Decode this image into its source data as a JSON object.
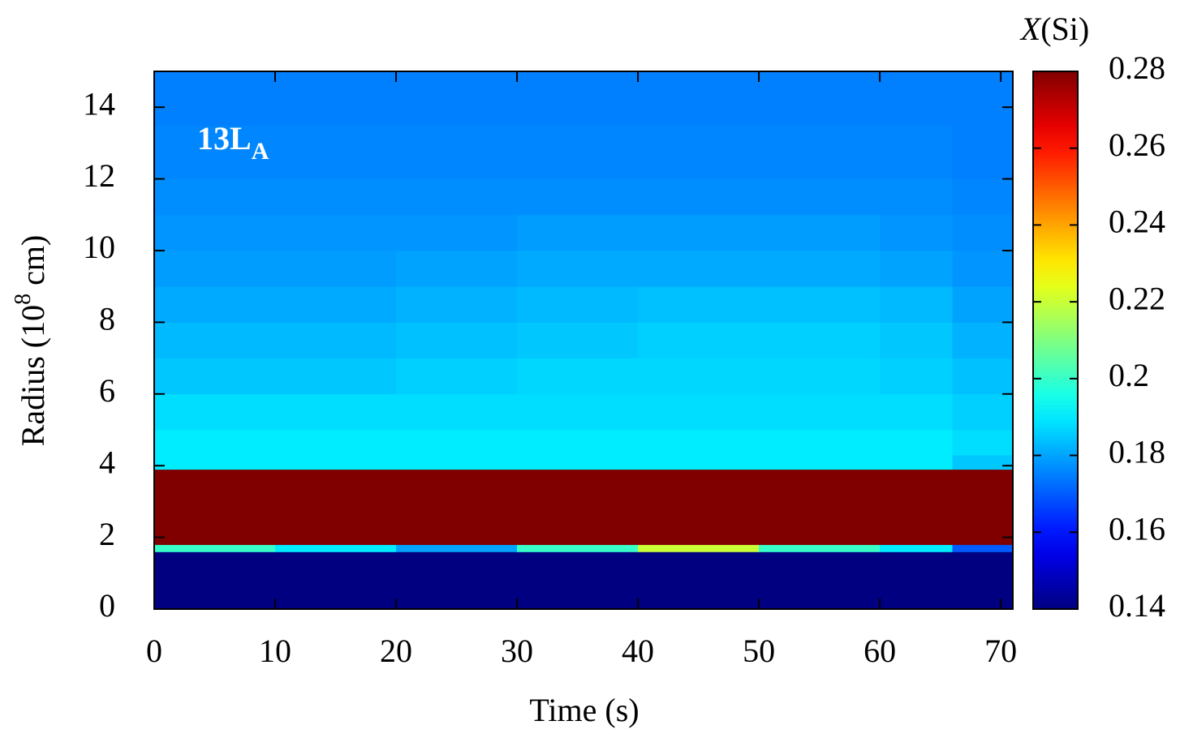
{
  "chart_data": {
    "type": "heatmap",
    "xlabel": "Time (s)",
    "ylabel": {
      "main": "Radius (10",
      "superscript": "8",
      "rest": " cm)"
    },
    "colorbar_label": {
      "italic": "X",
      "rest": "(Si)"
    },
    "annotation": {
      "main": "13L",
      "subscript": "A"
    },
    "xlim": [
      0,
      71
    ],
    "ylim": [
      0,
      15
    ],
    "xticks": [
      0,
      10,
      20,
      30,
      40,
      50,
      60,
      70
    ],
    "yticks": [
      0,
      2,
      4,
      6,
      8,
      10,
      12,
      14
    ],
    "zlim": [
      0.14,
      0.28
    ],
    "zticks": [
      0.14,
      0.16,
      0.18,
      0.2,
      0.22,
      0.24,
      0.26,
      0.28
    ],
    "colormap": "jet",
    "x_edges": [
      0,
      10,
      20,
      30,
      40,
      50,
      60,
      66,
      71
    ],
    "y_edges": [
      0,
      1.6,
      1.8,
      3.9,
      4.3,
      5,
      6,
      7,
      8,
      9,
      10,
      11,
      12,
      13.5,
      15
    ],
    "values": [
      [
        0.14,
        0.14,
        0.14,
        0.14,
        0.14,
        0.14,
        0.14,
        0.14
      ],
      [
        0.2,
        0.19,
        0.18,
        0.2,
        0.22,
        0.2,
        0.19,
        0.17
      ],
      [
        0.28,
        0.28,
        0.28,
        0.28,
        0.28,
        0.28,
        0.28,
        0.28
      ],
      [
        0.19,
        0.19,
        0.19,
        0.19,
        0.19,
        0.19,
        0.19,
        0.185
      ],
      [
        0.19,
        0.19,
        0.19,
        0.19,
        0.19,
        0.19,
        0.19,
        0.188
      ],
      [
        0.188,
        0.188,
        0.188,
        0.188,
        0.188,
        0.188,
        0.188,
        0.186
      ],
      [
        0.185,
        0.185,
        0.186,
        0.187,
        0.187,
        0.187,
        0.186,
        0.184
      ],
      [
        0.183,
        0.183,
        0.184,
        0.185,
        0.186,
        0.186,
        0.185,
        0.182
      ],
      [
        0.181,
        0.181,
        0.182,
        0.183,
        0.184,
        0.184,
        0.183,
        0.18
      ],
      [
        0.179,
        0.179,
        0.18,
        0.181,
        0.181,
        0.181,
        0.18,
        0.178
      ],
      [
        0.178,
        0.178,
        0.178,
        0.179,
        0.179,
        0.179,
        0.178,
        0.177
      ],
      [
        0.177,
        0.177,
        0.177,
        0.177,
        0.177,
        0.177,
        0.177,
        0.176
      ],
      [
        0.176,
        0.176,
        0.176,
        0.176,
        0.176,
        0.176,
        0.176,
        0.175
      ],
      [
        0.175,
        0.175,
        0.175,
        0.175,
        0.175,
        0.175,
        0.175,
        0.175
      ]
    ]
  }
}
